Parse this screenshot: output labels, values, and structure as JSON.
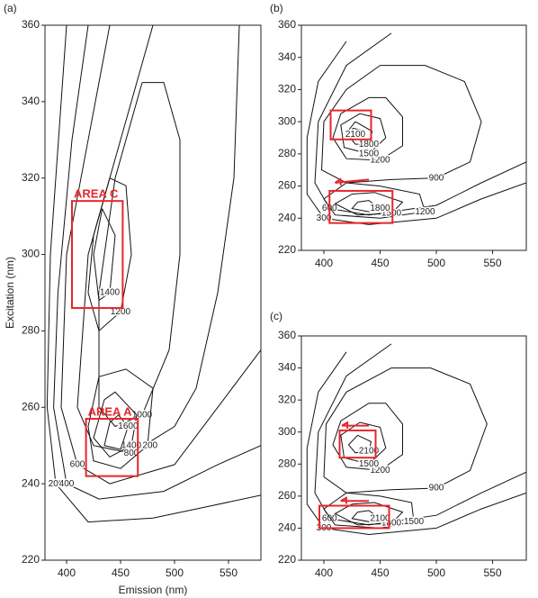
{
  "chart_data": [
    {
      "type": "contour",
      "panel_label": "(a)",
      "xlabel": "Emission (nm)",
      "ylabel": "Excitation (nm)",
      "xlim": [
        380,
        580
      ],
      "ylim": [
        220,
        360
      ],
      "xticks": [
        400,
        450,
        500,
        550
      ],
      "yticks": [
        220,
        240,
        260,
        280,
        300,
        320,
        340,
        360
      ],
      "box_color": "#e8262b",
      "contours": [
        {
          "level": 200,
          "x": [
            400,
            395,
            385,
            382,
            390,
            420,
            480,
            530,
            580
          ],
          "y": [
            360,
            340,
            300,
            260,
            240,
            230,
            231,
            234,
            237
          ]
        },
        {
          "level": 400,
          "x": [
            420,
            405,
            392,
            388,
            400,
            430,
            490,
            540,
            580
          ],
          "y": [
            360,
            330,
            290,
            260,
            240,
            236,
            238,
            245,
            250
          ]
        },
        {
          "level": 600,
          "x": [
            440,
            420,
            400,
            395,
            410,
            440,
            500,
            540,
            580
          ],
          "y": [
            360,
            330,
            300,
            260,
            245,
            240,
            245,
            260,
            275
          ]
        },
        {
          "level": 800,
          "x": [
            480,
            450,
            420,
            410,
            425,
            460,
            500,
            520,
            540,
            555,
            560
          ],
          "y": [
            360,
            330,
            300,
            260,
            250,
            248,
            255,
            265,
            290,
            320,
            360
          ]
        },
        {
          "level": 1000,
          "x": [
            470,
            445,
            430,
            430,
            445,
            470,
            495,
            505,
            505,
            490,
            470
          ],
          "y": [
            345,
            320,
            290,
            260,
            255,
            258,
            275,
            300,
            330,
            345,
            345
          ]
        },
        {
          "level": 1200,
          "x": [
            440,
            425,
            420,
            430,
            450,
            460,
            455,
            440
          ],
          "y": [
            320,
            305,
            290,
            280,
            285,
            300,
            318,
            320
          ]
        },
        {
          "level": 1400,
          "x": [
            433,
            425,
            430,
            440,
            445,
            433
          ],
          "y": [
            312,
            300,
            288,
            290,
            305,
            312
          ]
        },
        {
          "level": 1200,
          "x": [
            430,
            420,
            425,
            450,
            475,
            480,
            455,
            430
          ],
          "y": [
            268,
            255,
            246,
            244,
            250,
            265,
            270,
            268
          ]
        },
        {
          "level": 1400,
          "x": [
            435,
            425,
            440,
            460,
            465,
            445,
            435
          ],
          "y": [
            262,
            252,
            247,
            250,
            258,
            264,
            262
          ]
        },
        {
          "level": 1600,
          "x": [
            440,
            435,
            450,
            457,
            448,
            440
          ],
          "y": [
            256,
            250,
            249,
            255,
            258,
            256
          ]
        }
      ],
      "boxes": [
        {
          "label": "AREA C",
          "x": [
            405,
            452
          ],
          "y": [
            286,
            314
          ]
        },
        {
          "label": "AREA A",
          "x": [
            418,
            466
          ],
          "y": [
            242,
            257
          ]
        }
      ]
    },
    {
      "type": "contour",
      "panel_label": "(b)",
      "xlim": [
        380,
        580
      ],
      "ylim": [
        220,
        360
      ],
      "xticks": [
        400,
        450,
        500,
        550
      ],
      "yticks": [
        220,
        240,
        260,
        280,
        300,
        320,
        340,
        360
      ],
      "box_color": "#e8262b",
      "contours": [
        {
          "level": 300,
          "x": [
            420,
            395,
            385,
            385,
            400,
            440,
            500,
            540,
            580
          ],
          "y": [
            350,
            325,
            290,
            255,
            240,
            236,
            240,
            252,
            262
          ]
        },
        {
          "level": 600,
          "x": [
            460,
            420,
            395,
            392,
            405,
            440,
            500,
            540,
            580
          ],
          "y": [
            355,
            335,
            300,
            262,
            246,
            242,
            248,
            262,
            275
          ]
        },
        {
          "level": 900,
          "x": [
            450,
            420,
            400,
            398,
            420,
            460,
            500,
            530,
            540,
            525,
            490,
            450
          ],
          "y": [
            335,
            320,
            300,
            270,
            262,
            264,
            265,
            275,
            300,
            325,
            335,
            335
          ]
        },
        {
          "level": 1200,
          "x": [
            440,
            415,
            408,
            420,
            450,
            470,
            470,
            455,
            440
          ],
          "y": [
            315,
            305,
            290,
            277,
            276,
            285,
            303,
            315,
            315
          ]
        },
        {
          "level": 1500,
          "x": [
            432,
            415,
            418,
            440,
            455,
            450,
            432
          ],
          "y": [
            305,
            298,
            284,
            280,
            290,
            302,
            305
          ]
        },
        {
          "level": 1800,
          "x": [
            428,
            420,
            428,
            440,
            443,
            428
          ],
          "y": [
            300,
            293,
            286,
            286,
            294,
            300
          ]
        },
        {
          "level": 2100,
          "x": [
            426,
            424,
            428,
            432,
            426
          ],
          "y": [
            296,
            294,
            292,
            295,
            296
          ]
        },
        {
          "level": 1200,
          "x": [
            420,
            400,
            410,
            450,
            490,
            485,
            450,
            420
          ],
          "y": [
            262,
            252,
            242,
            240,
            244,
            255,
            260,
            262
          ]
        },
        {
          "level": 1500,
          "x": [
            425,
            410,
            430,
            460,
            470,
            445,
            425
          ],
          "y": [
            255,
            249,
            242,
            243,
            250,
            256,
            255
          ]
        },
        {
          "level": 1800,
          "x": [
            430,
            425,
            440,
            450,
            440,
            430
          ],
          "y": [
            250,
            246,
            244,
            246,
            251,
            250
          ]
        }
      ],
      "boxes": [
        {
          "x": [
            406,
            442
          ],
          "y": [
            289,
            307
          ]
        },
        {
          "x": [
            405,
            461
          ],
          "y": [
            237,
            257
          ]
        }
      ],
      "arrows": [
        {
          "x": [
            440,
            410
          ],
          "y": [
            264,
            262
          ]
        }
      ]
    },
    {
      "type": "contour",
      "panel_label": "(c)",
      "xlim": [
        380,
        580
      ],
      "ylim": [
        220,
        360
      ],
      "xticks": [
        400,
        450,
        500,
        550
      ],
      "yticks": [
        220,
        240,
        260,
        280,
        300,
        320,
        340,
        360
      ],
      "box_color": "#e8262b",
      "contours": [
        {
          "level": 300,
          "x": [
            420,
            395,
            385,
            385,
            400,
            440,
            500,
            540,
            580
          ],
          "y": [
            350,
            325,
            290,
            255,
            240,
            236,
            240,
            252,
            262
          ]
        },
        {
          "level": 600,
          "x": [
            460,
            420,
            395,
            392,
            405,
            440,
            500,
            540,
            580
          ],
          "y": [
            355,
            335,
            300,
            262,
            246,
            242,
            248,
            262,
            275
          ]
        },
        {
          "level": 900,
          "x": [
            460,
            420,
            402,
            400,
            420,
            460,
            500,
            530,
            545,
            530,
            495,
            460
          ],
          "y": [
            340,
            325,
            305,
            272,
            262,
            264,
            265,
            276,
            305,
            330,
            340,
            340
          ]
        },
        {
          "level": 1200,
          "x": [
            440,
            415,
            408,
            420,
            450,
            470,
            470,
            455,
            440
          ],
          "y": [
            318,
            307,
            292,
            278,
            276,
            286,
            305,
            318,
            318
          ]
        },
        {
          "level": 1500,
          "x": [
            432,
            415,
            418,
            440,
            455,
            450,
            432
          ],
          "y": [
            306,
            298,
            284,
            280,
            290,
            303,
            306
          ]
        },
        {
          "level": 2100,
          "x": [
            430,
            422,
            428,
            440,
            442,
            430
          ],
          "y": [
            298,
            292,
            287,
            288,
            294,
            298
          ]
        },
        {
          "level": 1500,
          "x": [
            420,
            400,
            410,
            450,
            480,
            478,
            450,
            420
          ],
          "y": [
            262,
            252,
            242,
            240,
            244,
            256,
            260,
            262
          ]
        },
        {
          "level": 1800,
          "x": [
            425,
            410,
            430,
            460,
            470,
            445,
            425
          ],
          "y": [
            255,
            249,
            242,
            243,
            250,
            256,
            255
          ]
        },
        {
          "level": 2100,
          "x": [
            430,
            425,
            440,
            450,
            440,
            430
          ],
          "y": [
            250,
            246,
            244,
            246,
            251,
            250
          ]
        }
      ],
      "boxes": [
        {
          "x": [
            414,
            446
          ],
          "y": [
            284,
            301
          ]
        },
        {
          "x": [
            396,
            458
          ],
          "y": [
            240,
            254
          ]
        }
      ],
      "arrows": [
        {
          "x": [
            440,
            416
          ],
          "y": [
            304,
            304
          ]
        },
        {
          "x": [
            440,
            415
          ],
          "y": [
            257,
            257
          ]
        }
      ]
    }
  ]
}
